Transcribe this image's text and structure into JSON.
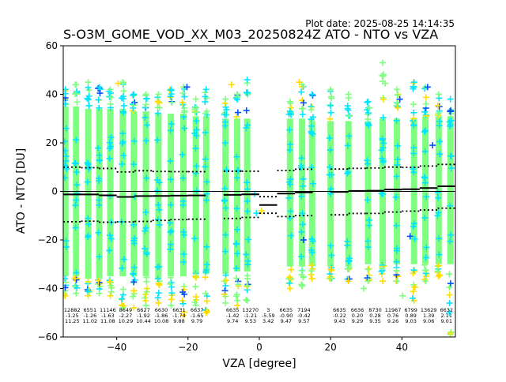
{
  "plot_date": "Plot date: 2025-08-25 14:14:35",
  "chart_data": {
    "type": "scatter",
    "title": "S-O3M_GOME_VOD_XX_M03_20250824Z ATO - NTO vs VZA",
    "xlabel": "VZA [degree]",
    "ylabel": "ATO - NTO [DU]",
    "xlim": [
      -55,
      55
    ],
    "ylim": [
      -60,
      60
    ],
    "xticks": [
      -40,
      -20,
      0,
      20,
      40
    ],
    "yticks": [
      -60,
      -40,
      -20,
      0,
      20,
      40,
      60
    ],
    "grid": false,
    "legend": "none",
    "zero_line": 0,
    "colors": {
      "dense": "#7fff7f",
      "medium": "#00e5ff",
      "sparse": "#ffdd00",
      "rare": "#0050ff",
      "mean_line": "#000000"
    },
    "bins": [
      {
        "vza": -52.5,
        "count": "12882",
        "mean": "-1.25",
        "std": "11.25",
        "n_mean": -1.25,
        "n_std": 11.25
      },
      {
        "vza": -47.5,
        "count": "6551",
        "mean": "-1.26",
        "std": "11.02",
        "n_mean": -1.26,
        "n_std": 11.02
      },
      {
        "vza": -42.5,
        "count": "11146",
        "mean": "-1.63",
        "std": "11.08",
        "n_mean": -1.63,
        "n_std": 11.08
      },
      {
        "vza": -37.5,
        "count": "8649",
        "mean": "-2.27",
        "std": "10.29",
        "n_mean": -2.27,
        "n_std": 10.29
      },
      {
        "vza": -32.5,
        "count": "6627",
        "mean": "-1.92",
        "std": "10.44",
        "n_mean": -1.92,
        "n_std": 10.44
      },
      {
        "vza": -27.5,
        "count": "6630",
        "mean": "-1.86",
        "std": "10.08",
        "n_mean": -1.86,
        "n_std": 10.08
      },
      {
        "vza": -22.5,
        "count": "6631",
        "mean": "-1.74",
        "std": "9.88",
        "n_mean": -1.74,
        "n_std": 9.88
      },
      {
        "vza": -17.5,
        "count": "6637",
        "mean": "-1.65",
        "std": "9.79",
        "n_mean": -1.65,
        "n_std": 9.79
      },
      {
        "vza": -7.5,
        "count": "6635",
        "mean": "-1.42",
        "std": "9.74",
        "n_mean": -1.42,
        "n_std": 9.74
      },
      {
        "vza": -2.5,
        "count": "13270",
        "mean": "-1.21",
        "std": "9.53",
        "n_mean": -1.21,
        "n_std": 9.53
      },
      {
        "vza": 2.5,
        "count": "3",
        "mean": "-5.59",
        "std": "3.42",
        "n_mean": -5.59,
        "n_std": 3.42
      },
      {
        "vza": 7.5,
        "count": "6635",
        "mean": "-0.90",
        "std": "9.47",
        "n_mean": -0.9,
        "n_std": 9.47
      },
      {
        "vza": 12.5,
        "count": "7194",
        "mean": "-0.42",
        "std": "9.57",
        "n_mean": -0.42,
        "n_std": 9.57
      },
      {
        "vza": 22.5,
        "count": "6635",
        "mean": "-0.22",
        "std": "9.43",
        "n_mean": -0.22,
        "n_std": 9.43
      },
      {
        "vza": 27.5,
        "count": "6636",
        "mean": "0.20",
        "std": "9.29",
        "n_mean": 0.2,
        "n_std": 9.29
      },
      {
        "vza": 32.5,
        "count": "8730",
        "mean": "0.28",
        "std": "9.35",
        "n_mean": 0.28,
        "n_std": 9.35
      },
      {
        "vza": 37.5,
        "count": "11967",
        "mean": "0.76",
        "std": "9.26",
        "n_mean": 0.76,
        "n_std": 9.26
      },
      {
        "vza": 42.5,
        "count": "6799",
        "mean": "0.89",
        "std": "9.03",
        "n_mean": 0.89,
        "n_std": 9.03
      },
      {
        "vza": 47.5,
        "count": "13629",
        "mean": "1.39",
        "std": "9.06",
        "n_mean": 1.39,
        "n_std": 9.06
      },
      {
        "vza": 52.5,
        "count": "6632",
        "mean": "2.11",
        "std": "9.01",
        "n_mean": 2.11,
        "n_std": 9.01
      }
    ],
    "columns": [
      {
        "x": -54.4,
        "ymin": -43,
        "ymax": 42,
        "dense_min": -35,
        "dense_max": 35
      },
      {
        "x": -51.4,
        "ymin": -42,
        "ymax": 44,
        "dense_min": -35,
        "dense_max": 35
      },
      {
        "x": -48.0,
        "ymin": -43,
        "ymax": 45,
        "dense_min": -36,
        "dense_max": 34
      },
      {
        "x": -44.9,
        "ymin": -42,
        "ymax": 43,
        "dense_min": -36,
        "dense_max": 34
      },
      {
        "x": -41.8,
        "ymin": -43,
        "ymax": 42,
        "dense_min": -35,
        "dense_max": 34
      },
      {
        "x": -38.3,
        "ymin": -48,
        "ymax": 45,
        "dense_min": -35,
        "dense_max": 34
      },
      {
        "x": -35.2,
        "ymin": -48,
        "ymax": 40,
        "dense_min": -35,
        "dense_max": 33
      },
      {
        "x": -31.8,
        "ymin": -47,
        "ymax": 40,
        "dense_min": -35,
        "dense_max": 33
      },
      {
        "x": -28.3,
        "ymin": -46,
        "ymax": 40,
        "dense_min": -36,
        "dense_max": 32
      },
      {
        "x": -24.8,
        "ymin": -47,
        "ymax": 42,
        "dense_min": -35,
        "dense_max": 32
      },
      {
        "x": -21.3,
        "ymin": -51,
        "ymax": 43,
        "dense_min": -35,
        "dense_max": 32
      },
      {
        "x": -17.8,
        "ymin": -47,
        "ymax": 38,
        "dense_min": -34,
        "dense_max": 31
      },
      {
        "x": -14.9,
        "ymin": -50,
        "ymax": 42,
        "dense_min": -34,
        "dense_max": 31
      },
      {
        "x": -9.5,
        "ymin": -46,
        "ymax": 38,
        "dense_min": -34,
        "dense_max": 30
      },
      {
        "x": -6.2,
        "ymin": -47,
        "ymax": 40,
        "dense_min": -33,
        "dense_max": 30
      },
      {
        "x": -3.4,
        "ymin": -45,
        "ymax": 46,
        "dense_min": -33,
        "dense_max": 30
      },
      {
        "x": 8.6,
        "ymin": -40,
        "ymax": 37,
        "dense_min": -31,
        "dense_max": 30
      },
      {
        "x": 12.0,
        "ymin": -39,
        "ymax": 44,
        "dense_min": -31,
        "dense_max": 30
      },
      {
        "x": 14.8,
        "ymin": -36,
        "ymax": 40,
        "dense_min": -30,
        "dense_max": 29
      },
      {
        "x": 20.0,
        "ymin": -36,
        "ymax": 42,
        "dense_min": -31,
        "dense_max": 29
      },
      {
        "x": 25.0,
        "ymin": -37,
        "ymax": 40,
        "dense_min": -31,
        "dense_max": 29
      },
      {
        "x": 30.5,
        "ymin": -37,
        "ymax": 37,
        "dense_min": -30,
        "dense_max": 29
      },
      {
        "x": 34.6,
        "ymin": -37,
        "ymax": 53,
        "dense_min": -30,
        "dense_max": 30
      },
      {
        "x": 38.6,
        "ymin": -37,
        "ymax": 42,
        "dense_min": -30,
        "dense_max": 30
      },
      {
        "x": 43.4,
        "ymin": -45,
        "ymax": 45,
        "dense_min": -30,
        "dense_max": 30
      },
      {
        "x": 46.6,
        "ymin": -37,
        "ymax": 43,
        "dense_min": -30,
        "dense_max": 31
      },
      {
        "x": 50.3,
        "ymin": -35,
        "ymax": 40,
        "dense_min": -30,
        "dense_max": 31
      },
      {
        "x": 53.6,
        "ymin": -59,
        "ymax": 38,
        "dense_min": -30,
        "dense_max": 31
      }
    ],
    "extra_points": [
      {
        "x": -39.6,
        "y": 44.5,
        "c": "#ffdd00"
      },
      {
        "x": -20.3,
        "y": 43,
        "c": "#0050ff"
      },
      {
        "x": -21.0,
        "y": 39,
        "c": "#00e5ff"
      },
      {
        "x": -7.8,
        "y": 44,
        "c": "#ffdd00"
      },
      {
        "x": -0.8,
        "y": -9,
        "c": "#00e5ff"
      },
      {
        "x": 0.6,
        "y": -8,
        "c": "#ffdd00"
      },
      {
        "x": 11.2,
        "y": 45,
        "c": "#ffdd00"
      },
      {
        "x": 12.4,
        "y": 36.5,
        "c": "#0050ff"
      },
      {
        "x": 12.4,
        "y": -20,
        "c": "#0050ff"
      },
      {
        "x": 29.3,
        "y": -40,
        "c": "#7fff7f"
      },
      {
        "x": 35.3,
        "y": 44.5,
        "c": "#7fff7f"
      },
      {
        "x": 39.4,
        "y": 38,
        "c": "#0050ff"
      },
      {
        "x": 40.2,
        "y": -43,
        "c": "#7fff7f"
      },
      {
        "x": 42.3,
        "y": -18.5,
        "c": "#0050ff"
      },
      {
        "x": 47.2,
        "y": 43,
        "c": "#0050ff"
      },
      {
        "x": 48.6,
        "y": 19,
        "c": "#0050ff"
      },
      {
        "x": 53.6,
        "y": -58.5,
        "c": "#ffdd00"
      },
      {
        "x": 43.0,
        "y": -44,
        "c": "#00e5ff"
      },
      {
        "x": -1.3,
        "y": -1.0,
        "c": "#00e5ff"
      }
    ]
  }
}
